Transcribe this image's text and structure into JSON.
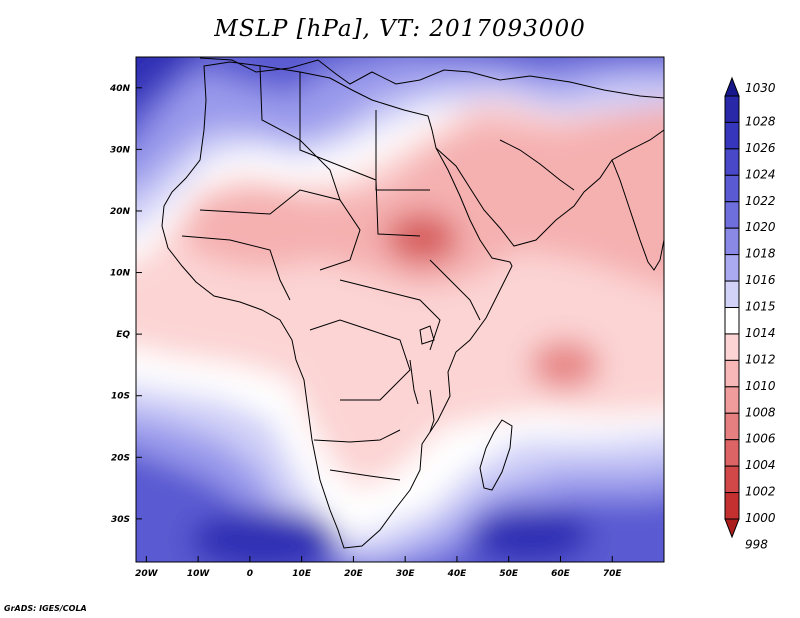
{
  "title": "MSLP [hPa], VT: 2017093000",
  "credit": "GrADS: IGES/COLA",
  "axes": {
    "lon_ticks": [
      {
        "value": -20,
        "label": "20W"
      },
      {
        "value": -10,
        "label": "10W"
      },
      {
        "value": 0,
        "label": "0"
      },
      {
        "value": 10,
        "label": "10E"
      },
      {
        "value": 20,
        "label": "20E"
      },
      {
        "value": 30,
        "label": "30E"
      },
      {
        "value": 40,
        "label": "40E"
      },
      {
        "value": 50,
        "label": "50E"
      },
      {
        "value": 60,
        "label": "60E"
      },
      {
        "value": 70,
        "label": "70E"
      }
    ],
    "lat_ticks": [
      {
        "value": 40,
        "label": "40N"
      },
      {
        "value": 30,
        "label": "30N"
      },
      {
        "value": 20,
        "label": "20N"
      },
      {
        "value": 10,
        "label": "10N"
      },
      {
        "value": 0,
        "label": "EQ"
      },
      {
        "value": -10,
        "label": "10S"
      },
      {
        "value": -20,
        "label": "20S"
      },
      {
        "value": -30,
        "label": "30S"
      }
    ],
    "lon_range": [
      -22,
      80
    ],
    "lat_range": [
      -37,
      45
    ]
  },
  "colorbar": {
    "levels": [
      {
        "label": "1030",
        "color": "#17178c"
      },
      {
        "label": "1028",
        "color": "#2828a8"
      },
      {
        "label": "1026",
        "color": "#3636bc"
      },
      {
        "label": "1024",
        "color": "#4848c8"
      },
      {
        "label": "1022",
        "color": "#5a5ad2"
      },
      {
        "label": "1020",
        "color": "#6e6edc"
      },
      {
        "label": "1018",
        "color": "#8a8ae6"
      },
      {
        "label": "1016",
        "color": "#aaaaf0"
      },
      {
        "label": "1015",
        "color": "#d2d2f8"
      },
      {
        "label": "1014",
        "color": "#ffffff"
      },
      {
        "label": "1012",
        "color": "#fcd4d4"
      },
      {
        "label": "1010",
        "color": "#f8b8b8"
      },
      {
        "label": "1008",
        "color": "#f09c9c"
      },
      {
        "label": "1006",
        "color": "#e68080"
      },
      {
        "label": "1004",
        "color": "#dc6464"
      },
      {
        "label": "1002",
        "color": "#d24848"
      },
      {
        "label": "1000",
        "color": "#c43030"
      },
      {
        "label": "998",
        "color": "#ab1e1e"
      }
    ]
  },
  "map_colors": {
    "deep_blue": "#2f2fb4",
    "blue": "#5a5ad2",
    "light_blue": "#9a9aec",
    "pale_blue": "#cfcff8",
    "white": "#ffffff",
    "pale_red": "#fcd4d4",
    "light_red": "#f5b0b0",
    "red": "#e88888",
    "dark_red": "#d86060"
  }
}
